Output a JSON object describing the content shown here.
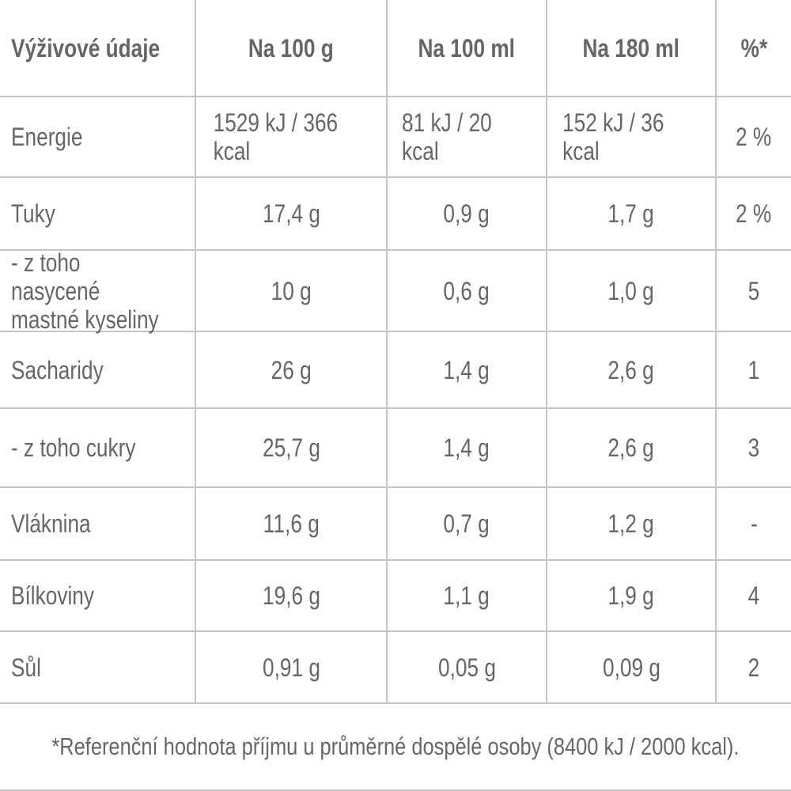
{
  "table": {
    "header": [
      "Výživové údaje",
      "Na 100 g",
      "Na 100 ml",
      "Na 180 ml",
      "%*"
    ],
    "rows": [
      [
        "Energie",
        "1529 kJ / 366 kcal",
        "81 kJ / 20 kcal",
        "152 kJ / 36 kcal",
        "2 %"
      ],
      [
        "Tuky",
        "17,4 g",
        "0,9 g",
        "1,7 g",
        "2 %"
      ],
      [
        "- z toho nasycené\nmastné kyseliny",
        "10 g",
        "0,6 g",
        "1,0 g",
        "5"
      ],
      [
        "Sacharidy",
        "26 g",
        "1,4 g",
        "2,6 g",
        "1"
      ],
      [
        "- z toho cukry",
        "25,7 g",
        "1,4 g",
        "2,6 g",
        "3"
      ],
      [
        "Vláknina",
        "11,6 g",
        "0,7 g",
        "1,2 g",
        "-"
      ],
      [
        "Bílkoviny",
        "19,6 g",
        "1,1 g",
        "1,9 g",
        "4"
      ],
      [
        "Sůl",
        "0,91 g",
        "0,05 g",
        "0,09 g",
        "2"
      ]
    ],
    "footnote": "*Referenční hodnota příjmu u průměrné dospělé osoby (8400 kJ / 2000 kcal)."
  }
}
